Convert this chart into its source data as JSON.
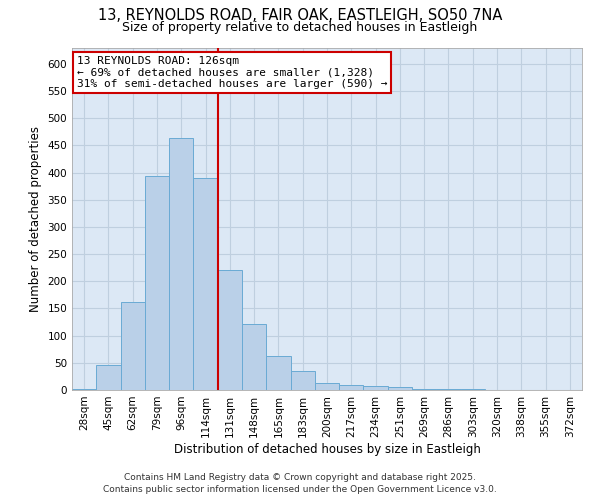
{
  "title": "13, REYNOLDS ROAD, FAIR OAK, EASTLEIGH, SO50 7NA",
  "subtitle": "Size of property relative to detached houses in Eastleigh",
  "xlabel": "Distribution of detached houses by size in Eastleigh",
  "ylabel": "Number of detached properties",
  "categories": [
    "28sqm",
    "45sqm",
    "62sqm",
    "79sqm",
    "96sqm",
    "114sqm",
    "131sqm",
    "148sqm",
    "165sqm",
    "183sqm",
    "200sqm",
    "217sqm",
    "234sqm",
    "251sqm",
    "269sqm",
    "286sqm",
    "303sqm",
    "320sqm",
    "338sqm",
    "355sqm",
    "372sqm"
  ],
  "values": [
    2,
    46,
    161,
    393,
    463,
    390,
    220,
    121,
    63,
    35,
    13,
    10,
    7,
    5,
    2,
    1,
    1,
    0,
    0,
    0,
    0
  ],
  "bar_color": "#bad0e8",
  "bar_edge_color": "#6aaad4",
  "vline_color": "#cc0000",
  "annotation_line1": "13 REYNOLDS ROAD: 126sqm",
  "annotation_line2": "← 69% of detached houses are smaller (1,328)",
  "annotation_line3": "31% of semi-detached houses are larger (590) →",
  "annotation_box_color": "#ffffff",
  "annotation_box_edge": "#cc0000",
  "ylim": [
    0,
    630
  ],
  "yticks": [
    0,
    50,
    100,
    150,
    200,
    250,
    300,
    350,
    400,
    450,
    500,
    550,
    600
  ],
  "bg_color": "#ffffff",
  "plot_bg_color": "#dce8f5",
  "grid_color": "#bfcfdf",
  "footer_line1": "Contains HM Land Registry data © Crown copyright and database right 2025.",
  "footer_line2": "Contains public sector information licensed under the Open Government Licence v3.0.",
  "title_fontsize": 10.5,
  "subtitle_fontsize": 9,
  "axis_label_fontsize": 8.5,
  "tick_fontsize": 7.5,
  "footer_fontsize": 6.5,
  "annotation_fontsize": 8
}
